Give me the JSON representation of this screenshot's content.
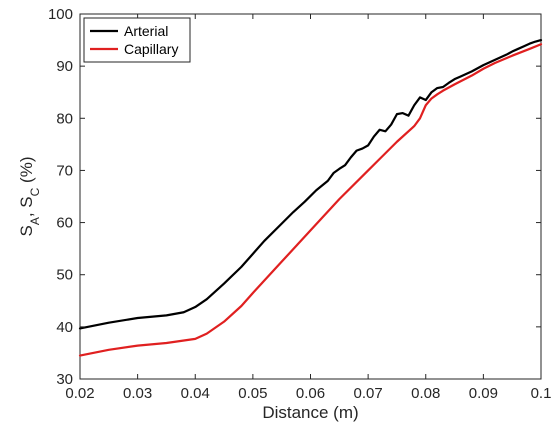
{
  "chart_data": {
    "type": "line",
    "xlabel": "Distance (m)",
    "ylabel": {
      "base": "S",
      "sub1": "A",
      "sep": ", ",
      "sub2": "C",
      "unit": " (%)"
    },
    "xlim": [
      0.02,
      0.1
    ],
    "ylim": [
      30,
      100
    ],
    "xticks": [
      0.02,
      0.03,
      0.04,
      0.05,
      0.06,
      0.07,
      0.08,
      0.09,
      0.1
    ],
    "xtick_labels": [
      "0.02",
      "0.03",
      "0.04",
      "0.05",
      "0.06",
      "0.07",
      "0.08",
      "0.09",
      "0.1"
    ],
    "yticks": [
      30,
      40,
      50,
      60,
      70,
      80,
      90,
      100
    ],
    "ytick_labels": [
      "30",
      "40",
      "50",
      "60",
      "70",
      "80",
      "90",
      "100"
    ],
    "grid": false,
    "legend_position": "top-left",
    "series": [
      {
        "name": "Arterial",
        "color": "#000000",
        "x": [
          0.02,
          0.025,
          0.03,
          0.035,
          0.038,
          0.04,
          0.042,
          0.045,
          0.048,
          0.05,
          0.052,
          0.055,
          0.057,
          0.059,
          0.061,
          0.063,
          0.064,
          0.065,
          0.066,
          0.067,
          0.068,
          0.069,
          0.07,
          0.071,
          0.072,
          0.073,
          0.074,
          0.075,
          0.076,
          0.077,
          0.078,
          0.079,
          0.08,
          0.081,
          0.082,
          0.083,
          0.084,
          0.085,
          0.086,
          0.087,
          0.088,
          0.089,
          0.09,
          0.091,
          0.092,
          0.093,
          0.094,
          0.095,
          0.096,
          0.097,
          0.098,
          0.099,
          0.1
        ],
        "y": [
          39.7,
          40.8,
          41.7,
          42.2,
          42.8,
          43.8,
          45.3,
          48.3,
          51.5,
          54.0,
          56.5,
          59.8,
          62.0,
          64.0,
          66.2,
          68.0,
          69.5,
          70.3,
          71.0,
          72.5,
          73.8,
          74.2,
          74.8,
          76.5,
          77.8,
          77.5,
          78.8,
          80.8,
          81.0,
          80.5,
          82.5,
          84.0,
          83.5,
          85.0,
          85.8,
          86.0,
          86.8,
          87.5,
          88.0,
          88.5,
          89.0,
          89.6,
          90.2,
          90.7,
          91.2,
          91.7,
          92.2,
          92.8,
          93.3,
          93.8,
          94.3,
          94.7,
          95.0
        ]
      },
      {
        "name": "Capillary",
        "color": "#e02020",
        "x": [
          0.02,
          0.025,
          0.03,
          0.035,
          0.04,
          0.042,
          0.045,
          0.048,
          0.05,
          0.055,
          0.06,
          0.065,
          0.07,
          0.075,
          0.078,
          0.079,
          0.08,
          0.081,
          0.082,
          0.083,
          0.085,
          0.088,
          0.09,
          0.092,
          0.095,
          0.098,
          0.1
        ],
        "y": [
          34.5,
          35.6,
          36.4,
          36.9,
          37.7,
          38.7,
          41.0,
          44.0,
          46.5,
          52.5,
          58.5,
          64.5,
          70.0,
          75.5,
          78.5,
          80.0,
          82.5,
          83.8,
          84.6,
          85.3,
          86.5,
          88.2,
          89.5,
          90.6,
          92.0,
          93.3,
          94.2
        ]
      }
    ]
  }
}
